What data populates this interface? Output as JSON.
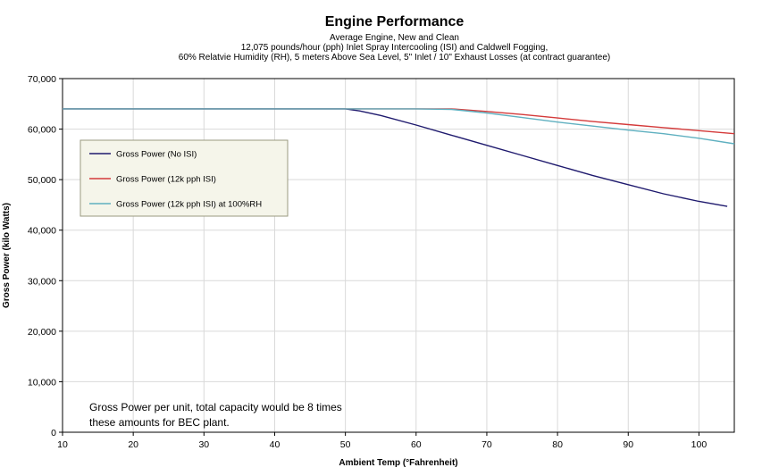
{
  "chart_data": {
    "type": "line",
    "title": "Engine Performance",
    "subtitle_lines": [
      "Average Engine, New and Clean",
      "12,075 pounds/hour (pph) Inlet Spray Intercooling (ISI) and Caldwell Fogging,",
      "60% Relatvie Humidity (RH), 5 meters Above Sea Level, 5\" Inlet / 10\" Exhaust Losses (at contract guarantee)"
    ],
    "xlabel": "Ambient Temp (°Fahrenheit)",
    "ylabel": "Gross Power (kilo Watts)",
    "xlim": [
      10,
      105
    ],
    "ylim": [
      0,
      70000
    ],
    "x_ticks": [
      10,
      20,
      30,
      40,
      50,
      60,
      70,
      80,
      90,
      100
    ],
    "y_ticks": [
      0,
      10000,
      20000,
      30000,
      40000,
      50000,
      60000,
      70000
    ],
    "y_tick_labels": [
      "0",
      "10,000",
      "20,000",
      "30,000",
      "40,000",
      "50,000",
      "60,000",
      "70,000"
    ],
    "grid": {
      "x": true,
      "y": true
    },
    "legend_placement": "upper-left",
    "annotation": "Gross Power per unit, total capacity would be 8 times these amounts for BEC plant.",
    "series": [
      {
        "name": "Gross Power (No ISI)",
        "color": "#1f1a6e",
        "x": [
          10,
          20,
          30,
          40,
          50,
          52,
          55,
          60,
          65,
          70,
          75,
          80,
          85,
          90,
          95,
          100,
          104
        ],
        "y": [
          64000,
          64000,
          64000,
          64000,
          64000,
          63600,
          62700,
          60800,
          58800,
          56800,
          54800,
          52800,
          50800,
          49000,
          47200,
          45700,
          44700
        ]
      },
      {
        "name": "Gross Power (12k pph ISI)",
        "color": "#d43a3a",
        "x": [
          10,
          20,
          30,
          40,
          50,
          60,
          65,
          70,
          75,
          80,
          85,
          90,
          95,
          100,
          105
        ],
        "y": [
          64000,
          64000,
          64000,
          64000,
          64000,
          64000,
          64000,
          63500,
          62900,
          62200,
          61500,
          60900,
          60300,
          59700,
          59100
        ]
      },
      {
        "name": "Gross Power (12k pph ISI) at 100%RH",
        "color": "#5fb0c0",
        "x": [
          10,
          20,
          30,
          40,
          50,
          60,
          65,
          70,
          75,
          80,
          85,
          90,
          95,
          100,
          105
        ],
        "y": [
          64000,
          64000,
          64000,
          64000,
          64000,
          64000,
          63900,
          63200,
          62300,
          61400,
          60600,
          59800,
          59100,
          58200,
          57100
        ]
      }
    ]
  }
}
